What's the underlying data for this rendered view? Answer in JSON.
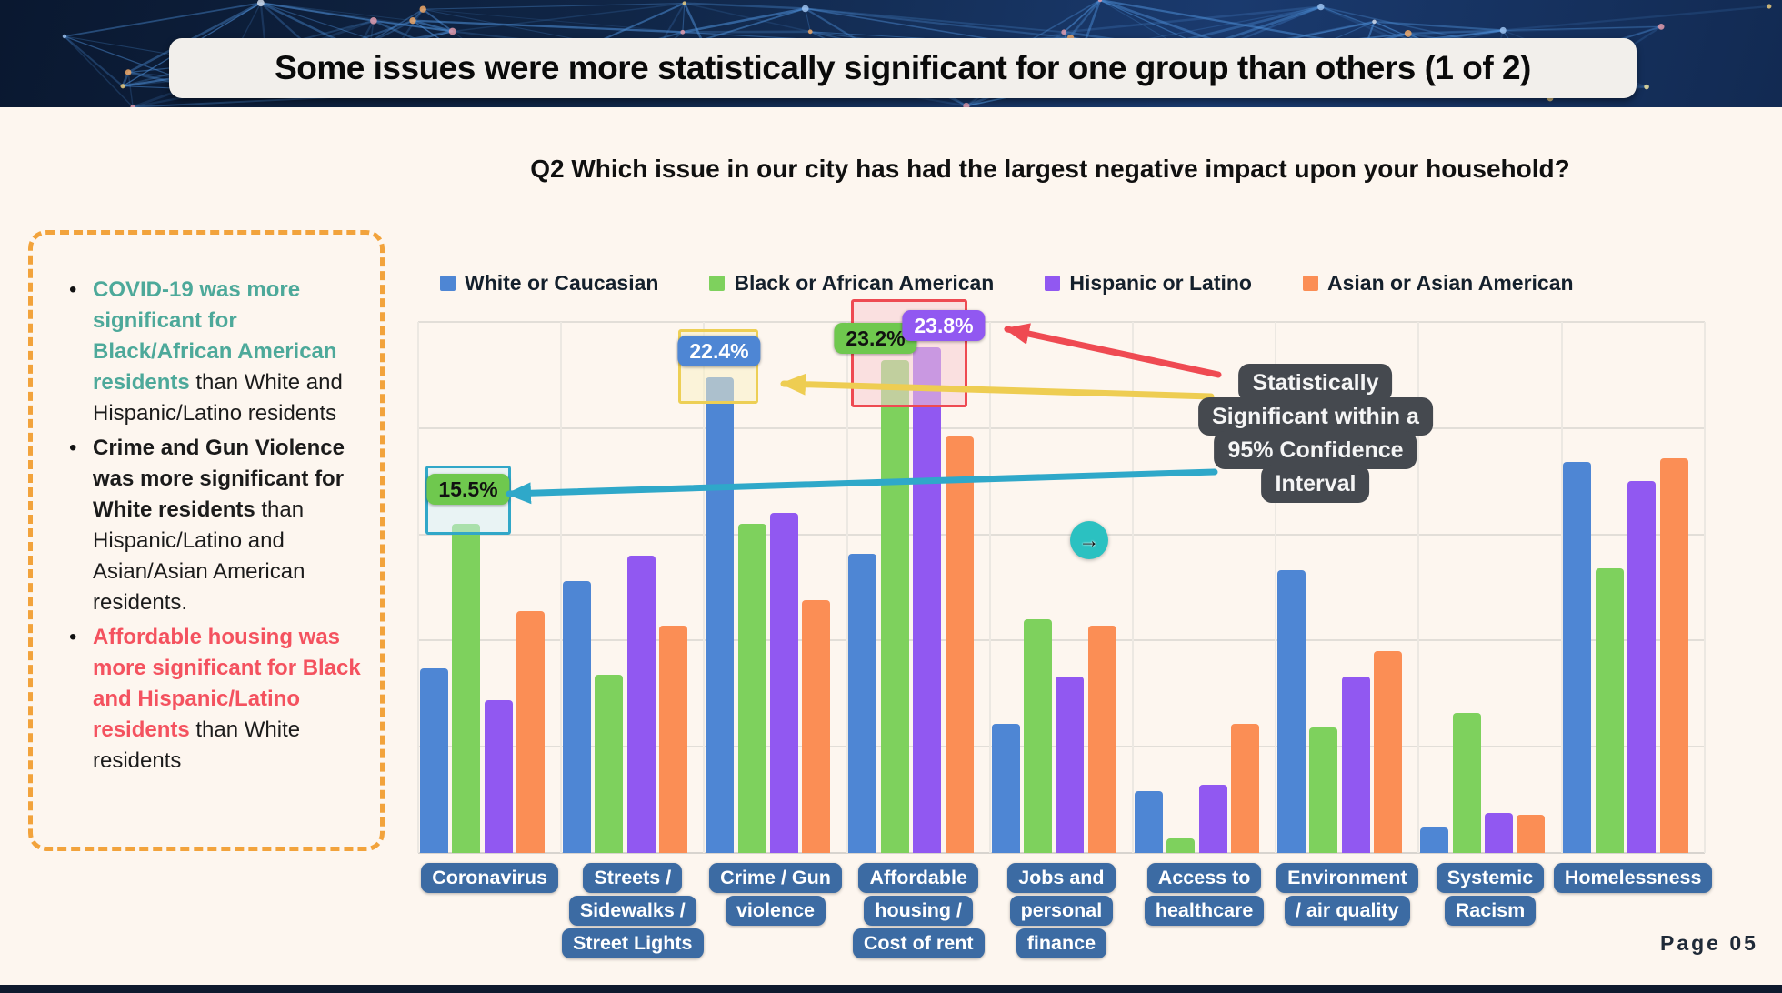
{
  "slide": {
    "title": "Some issues were more statistically significant for one group than others (1 of 2)",
    "subtitle": "Q2 Which issue in our city has had the largest negative impact upon your household?",
    "page_label": "Page 05",
    "background_color": "#fdf6ef",
    "banner_color": "#13294b"
  },
  "icons": {
    "cursor_arrow": "→"
  },
  "sidebar": {
    "border_color": "#f2a33c",
    "colors": {
      "teal": "#4da99a",
      "red": "#f4525f",
      "dark": "#1b1b1b"
    },
    "bullets": [
      {
        "segments": [
          {
            "text": "COVID-19 was more significant for Black/African American residents",
            "style": "teal-bold"
          },
          {
            "text": " than White and Hispanic/Latino residents",
            "style": "plain"
          }
        ]
      },
      {
        "segments": [
          {
            "text": "Crime and Gun Violence was more significant for White residents",
            "style": "dark-bold"
          },
          {
            "text": " than Hispanic/Latino and Asian/Asian American residents.",
            "style": "plain"
          }
        ]
      },
      {
        "segments": [
          {
            "text": "Affordable housing was more significant for Black and Hispanic/Latino residents",
            "style": "red-bold"
          },
          {
            "text": " than White residents",
            "style": "plain"
          }
        ]
      }
    ]
  },
  "chart_data": {
    "type": "bar",
    "title": "Q2 Which issue in our city has had the largest negative impact upon your household?",
    "xlabel": "",
    "ylabel": "",
    "ylim": [
      0,
      25
    ],
    "grid": "on",
    "grid_step": 5,
    "legend_position": "top",
    "categories": [
      "Coronavirus",
      "Streets / Sidewalks / Street Lights",
      "Crime / Gun violence",
      "Affordable housing / Cost of rent",
      "Jobs and personal finance",
      "Access to healthcare",
      "Environment / air quality",
      "Systemic Racism",
      "Homelessness"
    ],
    "category_label_lines": [
      [
        "Coronavirus"
      ],
      [
        "Streets /",
        "Sidewalks /",
        "Street Lights"
      ],
      [
        "Crime / Gun",
        "violence"
      ],
      [
        "Affordable",
        "housing /",
        "Cost of rent"
      ],
      [
        "Jobs and",
        "personal",
        "finance"
      ],
      [
        "Access to",
        "healthcare"
      ],
      [
        "Environment",
        "/ air quality"
      ],
      [
        "Systemic",
        "Racism"
      ],
      [
        "Homelessness"
      ]
    ],
    "category_label_style": {
      "bg": "#3c6ba3",
      "text": "#ffffff"
    },
    "series": [
      {
        "name": "White or Caucasian",
        "color": "#4e86d4",
        "values": [
          8.7,
          12.8,
          22.4,
          14.1,
          6.1,
          2.9,
          13.3,
          1.2,
          18.4
        ]
      },
      {
        "name": "Black or African American",
        "color": "#7ed15d",
        "values": [
          15.5,
          8.4,
          15.5,
          23.2,
          11.0,
          0.7,
          5.9,
          6.6,
          13.4
        ]
      },
      {
        "name": "Hispanic or Latino",
        "color": "#9158f1",
        "values": [
          7.2,
          14.0,
          16.0,
          23.8,
          8.3,
          3.2,
          8.3,
          1.9,
          17.5
        ]
      },
      {
        "name": "Asian or Asian American",
        "color": "#fb8e55",
        "values": [
          11.4,
          10.7,
          11.9,
          19.6,
          10.7,
          6.1,
          9.5,
          1.8,
          18.6
        ]
      }
    ]
  },
  "annotations": {
    "value_labels": [
      {
        "text": "15.5%",
        "pill_color": "#6fc84e",
        "text_color": "#111111",
        "target": "Black or African American - Coronavirus"
      },
      {
        "text": "22.4%",
        "pill_color": "#4e86d4",
        "text_color": "#ffffff",
        "target": "White or Caucasian - Crime / Gun violence"
      },
      {
        "text": "23.2%",
        "pill_color": "#6fc84e",
        "text_color": "#111111",
        "target": "Black or African American - Affordable housing"
      },
      {
        "text": "23.8%",
        "pill_color": "#9158f1",
        "text_color": "#ffffff",
        "target": "Hispanic or Latino - Affordable housing"
      }
    ],
    "highlight_boxes": [
      {
        "name": "coronavirus-highlight",
        "fill": "rgba(214,240,250,0.5)",
        "border": "#31a7c8"
      },
      {
        "name": "crime-highlight",
        "fill": "rgba(250,240,198,0.55)",
        "border": "#edcf55"
      },
      {
        "name": "housing-highlight",
        "fill": "rgba(248,206,211,0.55)",
        "border": "#ee4a52"
      }
    ],
    "callout": {
      "lines": [
        "Statistically",
        "Significant within a",
        "95% Confidence",
        "Interval"
      ],
      "bg": "#45494f",
      "text_color": "#f5f5f5"
    },
    "arrow_colors": {
      "red": "#ef4a52",
      "yellow": "#eecd52",
      "teal": "#2fa8c9"
    }
  }
}
